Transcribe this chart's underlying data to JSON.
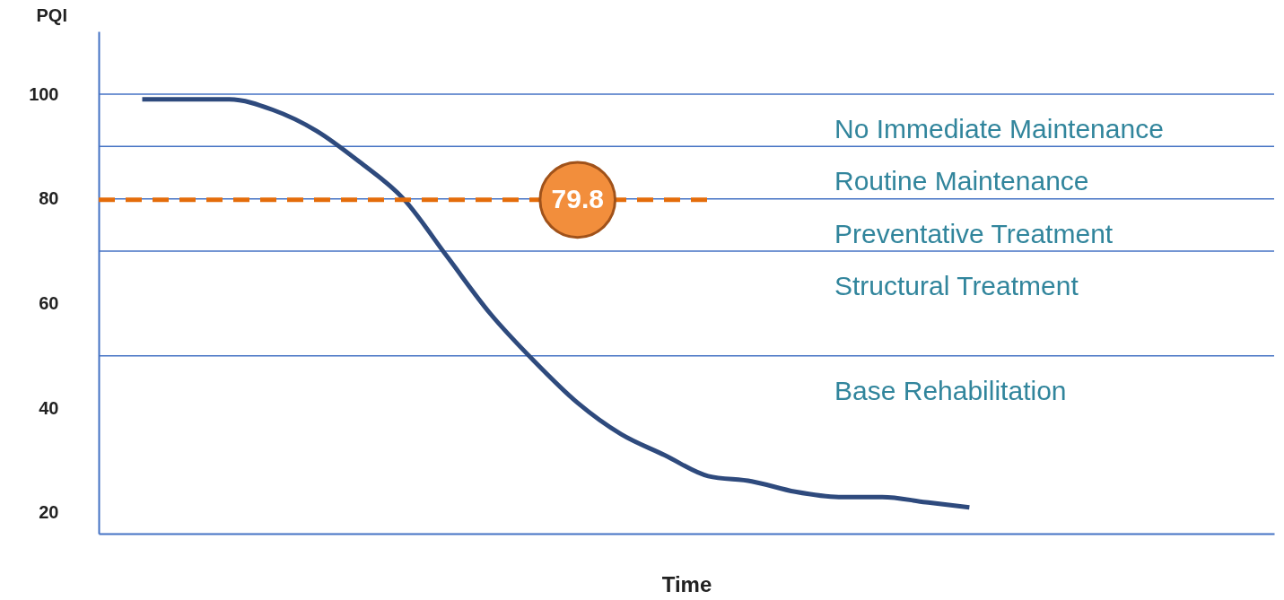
{
  "chart_data": {
    "type": "line",
    "xlabel": "Time",
    "ylabel": "PQI",
    "categories": [
      null,
      null,
      null,
      null,
      null,
      null,
      null,
      null,
      null,
      null,
      null,
      null,
      null,
      null,
      null,
      null,
      null,
      null,
      null,
      null,
      null,
      null,
      null,
      null,
      null,
      null,
      null,
      null
    ],
    "ylim": [
      16,
      112
    ],
    "yticks": [
      20,
      40,
      60,
      80,
      100
    ],
    "tick_labels": "y",
    "series": [
      {
        "color": "#2e4a7d",
        "values": [
          null,
          99,
          99,
          99,
          97,
          93,
          87,
          80,
          69,
          58,
          49,
          41,
          35,
          31,
          27,
          26,
          24,
          23,
          23,
          22,
          21,
          null,
          null,
          null,
          null,
          null,
          null,
          null
        ]
      },
      {
        "type": "line",
        "color": "#e46c0a",
        "line_style": "dashed",
        "values": [
          79.8,
          79.8,
          79.8,
          79.8,
          79.8,
          79.8,
          79.8,
          79.8,
          79.8,
          79.8,
          79.8,
          79.8,
          79.8,
          79.8,
          79.8,
          null,
          null,
          null,
          null,
          null,
          null,
          null,
          null,
          null,
          null,
          null,
          null,
          null
        ],
        "value_labels": [
          null,
          null,
          null,
          null,
          null,
          null,
          null,
          null,
          null,
          null,
          null,
          "79.8",
          null,
          null,
          null,
          null,
          null,
          null,
          null,
          null,
          null,
          null,
          null,
          null,
          null,
          null,
          null,
          null
        ]
      }
    ],
    "ref_lines": [
      {
        "axis": "y",
        "value": 100,
        "label": "No Immediate Maintenance"
      },
      {
        "axis": "y",
        "value": 90,
        "label": "Routine Maintenance"
      },
      {
        "axis": "y",
        "value": 80,
        "label": "Preventative Treatment"
      },
      {
        "axis": "y",
        "value": 70,
        "label": "Structural Treatment"
      },
      {
        "axis": "y",
        "value": 50,
        "label": "Base Rehabilitation"
      }
    ]
  }
}
